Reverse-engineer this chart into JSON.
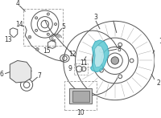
{
  "bg_color": "#ffffff",
  "border_color": "#cccccc",
  "highlight_color": "#5bc8d2",
  "line_color": "#555555",
  "label_color": "#333333",
  "fig_width": 2.0,
  "fig_height": 1.47,
  "dpi": 100
}
